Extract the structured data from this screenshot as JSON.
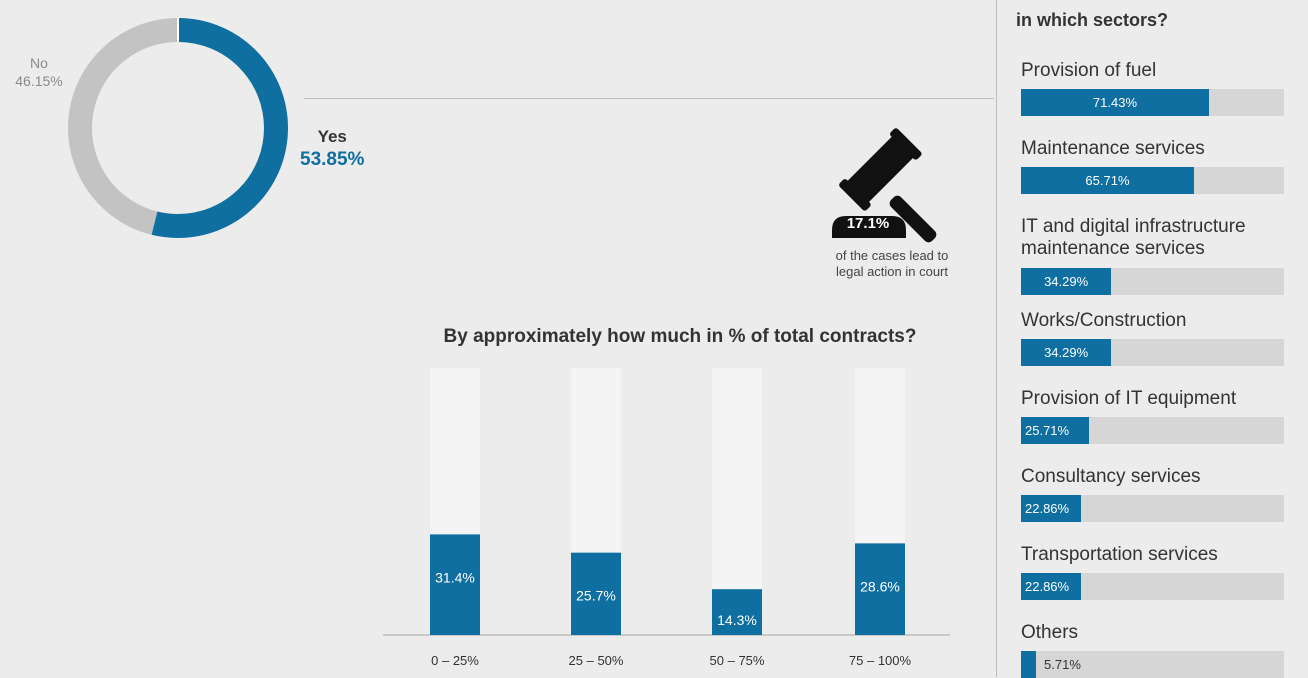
{
  "donut": {
    "no_label": "No",
    "no_value": "46.15%",
    "yes_label": "Yes",
    "yes_value": "53.85%",
    "colors": {
      "yes": "#0f6fa0",
      "no": "#c3c3c3"
    }
  },
  "legal": {
    "percent": "17.1%",
    "caption_line1": "of the cases lead to",
    "caption_line2": "legal action in court",
    "icon": "gavel-icon"
  },
  "chart_data": [
    {
      "type": "pie",
      "categories": [
        "Yes",
        "No"
      ],
      "values": [
        53.85,
        46.15
      ]
    },
    {
      "type": "bar",
      "title": "By approximately how much in % of total contracts?",
      "categories": [
        "0 – 25%",
        "25 – 50%",
        "50 – 75%",
        "75 – 100%"
      ],
      "values": [
        31.4,
        25.7,
        14.3,
        28.6
      ],
      "value_labels": [
        "31.4%",
        "25.7%",
        "14.3%",
        "28.6%"
      ],
      "ylim": [
        0,
        100
      ],
      "colors": {
        "bar": "#0f6fa0",
        "track": "#f4f4f4",
        "axis": "#bdbdbd"
      }
    },
    {
      "type": "bar",
      "orientation": "horizontal",
      "title": "in which sectors?",
      "categories": [
        "Provision of fuel",
        "Maintenance services",
        "IT and digital infrastructure maintenance services",
        "Works/Construction",
        "Provision of IT equipment",
        "Consultancy services",
        "Transportation services",
        "Others"
      ],
      "values": [
        71.43,
        65.71,
        34.29,
        34.29,
        25.71,
        22.86,
        22.86,
        5.71
      ],
      "value_labels": [
        "71.43%",
        "65.71%",
        "34.29%",
        "34.29%",
        "25.71%",
        "22.86%",
        "22.86%",
        "5.71%"
      ],
      "xlim": [
        0,
        100
      ]
    }
  ],
  "sectors": {
    "title": "in which sectors?",
    "items": [
      {
        "label1": "Provision of fuel",
        "label2": "",
        "value": 71.43,
        "value_label": "71.43%"
      },
      {
        "label1": "Maintenance services",
        "label2": "",
        "value": 65.71,
        "value_label": "65.71%"
      },
      {
        "label1": "IT and digital infrastructure",
        "label2": "maintenance services",
        "value": 34.29,
        "value_label": "34.29%"
      },
      {
        "label1": "Works/Construction",
        "label2": "",
        "value": 34.29,
        "value_label": "34.29%"
      },
      {
        "label1": "Provision of IT equipment",
        "label2": "",
        "value": 25.71,
        "value_label": "25.71%"
      },
      {
        "label1": "Consultancy services",
        "label2": "",
        "value": 22.86,
        "value_label": "22.86%"
      },
      {
        "label1": "Transportation services",
        "label2": "",
        "value": 22.86,
        "value_label": "22.86%"
      },
      {
        "label1": "Others",
        "label2": "",
        "value": 5.71,
        "value_label": "5.71%"
      }
    ]
  }
}
